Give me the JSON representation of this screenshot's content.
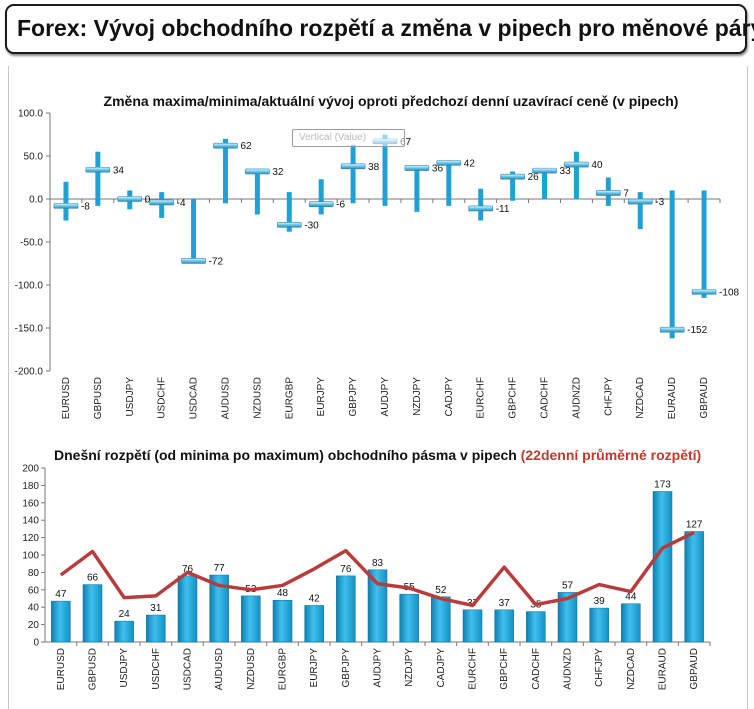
{
  "header": {
    "title": "Forex: Vývoj obchodního rozpětí a změna v pipech pro měnové páry"
  },
  "tooltip": {
    "text": "Vertical (Value)"
  },
  "chart_data": [
    {
      "type": "stock-range",
      "title": "Změna maxima/minima/aktuální vývoj oproti předchozí denní uzavírací ceně (v pipech)",
      "ylim": [
        -200,
        100
      ],
      "yticks": [
        "100.0",
        "50.0",
        "0.0",
        "-50.0",
        "-100.0",
        "-150.0",
        "-200.0"
      ],
      "ytick_values": [
        100,
        50,
        0,
        -50,
        -100,
        -150,
        -200
      ],
      "categories": [
        "EURUSD",
        "GBPUSD",
        "USDJPY",
        "USDCHF",
        "USDCAD",
        "AUDUSD",
        "NZDUSD",
        "EURGBP",
        "EURJPY",
        "GBPJPY",
        "AUDJPY",
        "NZDJPY",
        "CADJPY",
        "EURCHF",
        "GBPCHF",
        "CADCHF",
        "AUDNZD",
        "CHFJPY",
        "NZDCAD",
        "EURAUD",
        "GBPAUD"
      ],
      "high": [
        20,
        55,
        10,
        8,
        0,
        70,
        33,
        8,
        23,
        63,
        75,
        38,
        45,
        12,
        32,
        35,
        55,
        25,
        8,
        10,
        10
      ],
      "low": [
        -25,
        -8,
        -12,
        -22,
        -75,
        -5,
        -18,
        -38,
        -18,
        -5,
        -8,
        -15,
        -8,
        -25,
        -2,
        0,
        0,
        -8,
        -35,
        -162,
        -115
      ],
      "current": [
        -8,
        34,
        0,
        -4,
        -72,
        62,
        32,
        -30,
        -6,
        38,
        67,
        36,
        42,
        -11,
        26,
        33,
        40,
        7,
        -3,
        -152,
        -108
      ],
      "labels": [
        "-8",
        "34",
        "0",
        "-4",
        "-72",
        "62",
        "32",
        "-30",
        "-6",
        "38",
        "67",
        "36",
        "42",
        "-11",
        "26",
        "33",
        "40",
        "7",
        "-3",
        "-152",
        "-108"
      ],
      "colors": {
        "bar": "#1ea2d6",
        "marker": "#6cc6e8"
      }
    },
    {
      "type": "bar+line",
      "title": "Dnešní rozpětí (od minima po maximum) obchodního pásma v pipech",
      "title_red": "(22denní průměrné rozpětí)",
      "ylim": [
        0,
        200
      ],
      "yticks": [
        "200",
        "180",
        "160",
        "140",
        "120",
        "100",
        "80",
        "60",
        "40",
        "20",
        "0"
      ],
      "ytick_values": [
        200,
        180,
        160,
        140,
        120,
        100,
        80,
        60,
        40,
        20,
        0
      ],
      "categories": [
        "EURUSD",
        "GBPUSD",
        "USDJPY",
        "USDCHF",
        "USDCAD",
        "AUDUSD",
        "NZDUSD",
        "EURGBP",
        "EURJPY",
        "GBPJPY",
        "AUDJPY",
        "NZDJPY",
        "CADJPY",
        "EURCHF",
        "GBPCHF",
        "CADCHF",
        "AUDNZD",
        "CHFJPY",
        "NZDCAD",
        "EURAUD",
        "GBPAUD"
      ],
      "values": [
        47,
        66,
        24,
        31,
        76,
        77,
        53,
        48,
        42,
        76,
        83,
        55,
        52,
        37,
        37,
        35,
        57,
        39,
        44,
        173,
        127
      ],
      "labels": [
        "47",
        "66",
        "24",
        "31",
        "76",
        "77",
        "53",
        "48",
        "42",
        "76",
        "83",
        "55",
        "52",
        "37",
        "37",
        "35",
        "57",
        "39",
        "44",
        "173",
        "127"
      ],
      "average": [
        77,
        104,
        51,
        53,
        80,
        65,
        60,
        65,
        84,
        105,
        67,
        62,
        50,
        42,
        86,
        43,
        50,
        66,
        58,
        108,
        126
      ],
      "colors": {
        "bar": "#1ea2d6",
        "line": "#b83c3c",
        "title_red": "#c0392b"
      }
    }
  ]
}
